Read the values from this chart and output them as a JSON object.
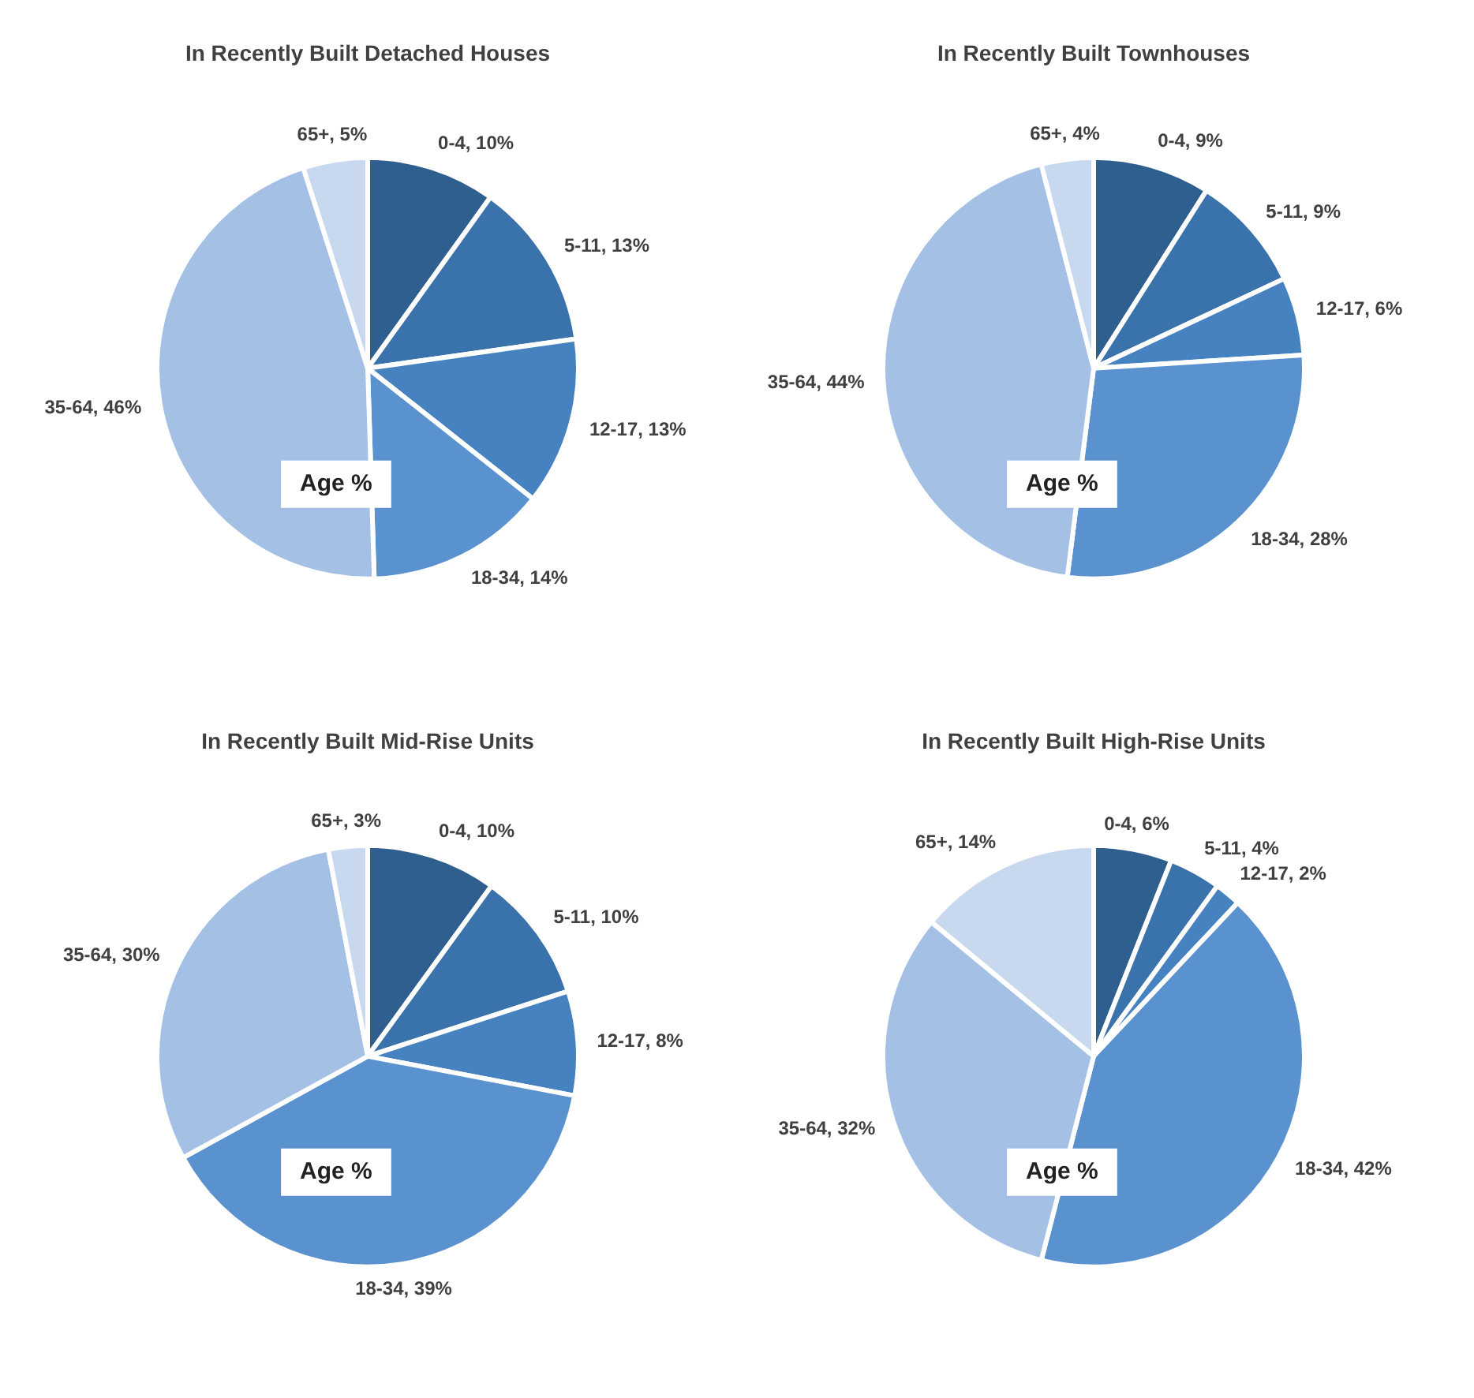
{
  "chart_data": [
    {
      "type": "pie",
      "title": "In Recently Built Detached Houses",
      "categories": [
        "0-4",
        "5-11",
        "12-17",
        "18-34",
        "35-64",
        "65+"
      ],
      "values": [
        10,
        13,
        13,
        14,
        46,
        5
      ],
      "colors": [
        "#2f5f8e",
        "#3a72ab",
        "#4682c0",
        "#5a92cf",
        "#a4c0e4",
        "#c8d9ef"
      ],
      "value_labels": [
        "10%",
        "13%",
        "13%",
        "14%",
        "46%",
        "5%"
      ],
      "annotations": [
        "Age %"
      ]
    },
    {
      "type": "pie",
      "title": "In Recently Built Townhouses",
      "categories": [
        "0-4",
        "5-11",
        "12-17",
        "18-34",
        "35-64",
        "65+"
      ],
      "values": [
        9,
        9,
        6,
        28,
        44,
        4
      ],
      "colors": [
        "#2f5f8e",
        "#3a72ab",
        "#4682c0",
        "#5a92cf",
        "#a4c0e4",
        "#c8d9ef"
      ],
      "value_labels": [
        "9%",
        "9%",
        "6%",
        "28%",
        "44%",
        "4%"
      ],
      "annotations": [
        "Age %"
      ]
    },
    {
      "type": "pie",
      "title": "In Recently Built Mid-Rise Units",
      "categories": [
        "0-4",
        "5-11",
        "12-17",
        "18-34",
        "35-64",
        "65+"
      ],
      "values": [
        10,
        10,
        8,
        39,
        30,
        3
      ],
      "colors": [
        "#2f5f8e",
        "#3a72ab",
        "#4682c0",
        "#5a92cf",
        "#a4c0e4",
        "#c8d9ef"
      ],
      "value_labels": [
        "10%",
        "10%",
        "8%",
        "39%",
        "30%",
        "3%"
      ],
      "annotations": [
        "Age %"
      ]
    },
    {
      "type": "pie",
      "title": "In Recently Built High-Rise Units",
      "categories": [
        "0-4",
        "5-11",
        "12-17",
        "18-34",
        "35-64",
        "65+"
      ],
      "values": [
        6,
        4,
        2,
        42,
        32,
        14
      ],
      "colors": [
        "#2f5f8e",
        "#3a72ab",
        "#4682c0",
        "#5a92cf",
        "#a4c0e4",
        "#c8d9ef"
      ],
      "value_labels": [
        "6%",
        "4%",
        "2%",
        "42%",
        "32%",
        "14%"
      ],
      "annotations": [
        "Age %"
      ]
    }
  ]
}
